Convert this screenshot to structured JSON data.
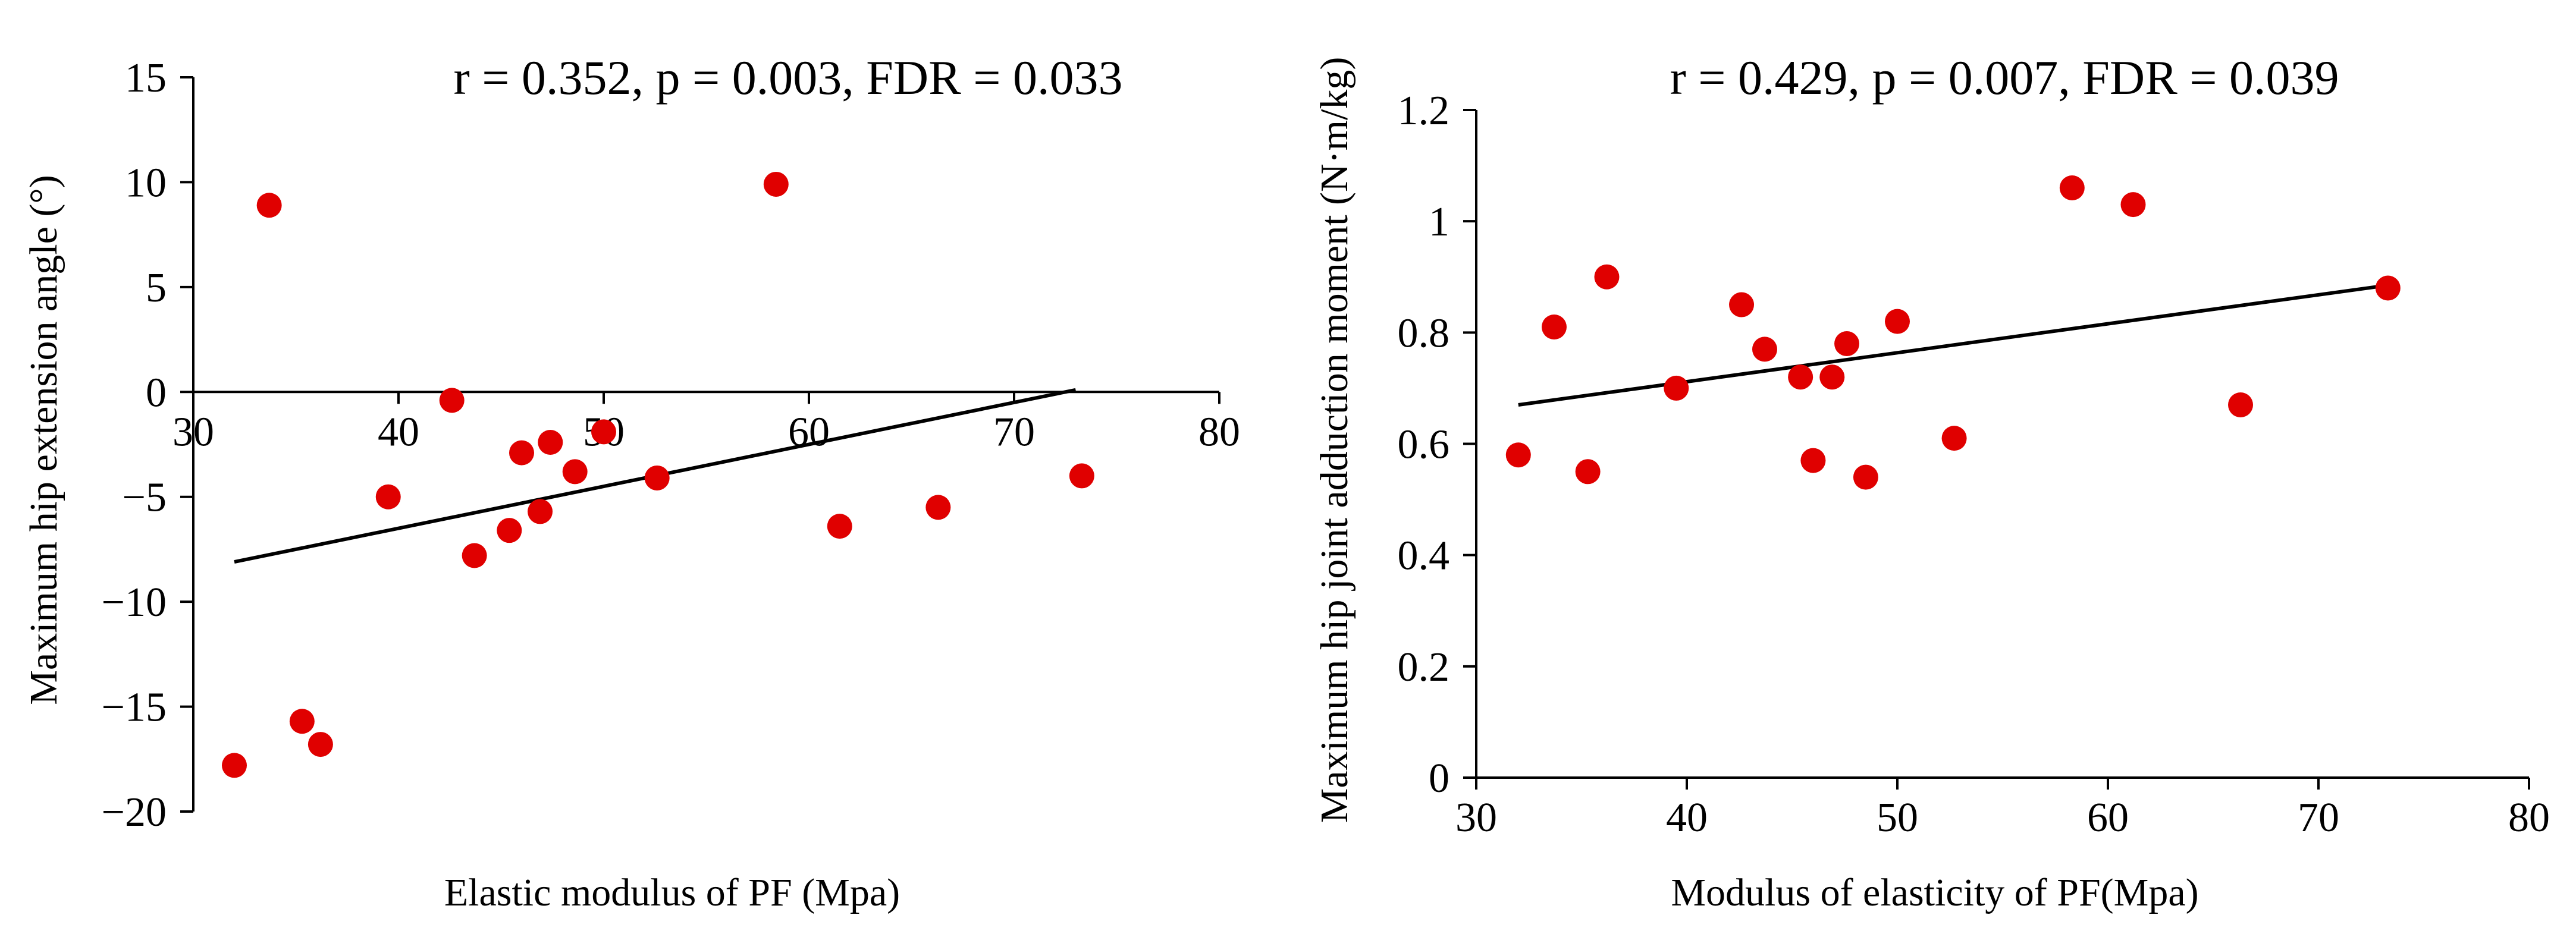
{
  "chart_data": [
    {
      "type": "scatter",
      "title": "r = 0.352, p = 0.003, FDR = 0.033",
      "xlabel": "Elastic modulus of PF (Mpa)",
      "ylabel": "Maximum hip extension angle (°)",
      "xlim": [
        30,
        80
      ],
      "ylim": [
        -20,
        15
      ],
      "xticks": [
        "30",
        "40",
        "50",
        "60",
        "70",
        "80"
      ],
      "yticks": [
        "15",
        "10",
        "5",
        "0",
        "−5",
        "−10",
        "−15",
        "−20"
      ],
      "colors": {
        "points": "#e00000",
        "trendline": "#000000"
      },
      "points": [
        {
          "x": 32.0,
          "y": -17.8
        },
        {
          "x": 33.7,
          "y": 8.9
        },
        {
          "x": 35.3,
          "y": -15.7
        },
        {
          "x": 36.2,
          "y": -16.8
        },
        {
          "x": 39.5,
          "y": -5.0
        },
        {
          "x": 42.6,
          "y": -0.4
        },
        {
          "x": 43.7,
          "y": -7.8
        },
        {
          "x": 45.4,
          "y": -6.6
        },
        {
          "x": 46.0,
          "y": -2.9
        },
        {
          "x": 46.9,
          "y": -5.7
        },
        {
          "x": 47.4,
          "y": -2.4
        },
        {
          "x": 48.6,
          "y": -3.8
        },
        {
          "x": 50.0,
          "y": -1.9
        },
        {
          "x": 52.6,
          "y": -4.1
        },
        {
          "x": 58.4,
          "y": 9.9
        },
        {
          "x": 61.5,
          "y": -6.4
        },
        {
          "x": 66.3,
          "y": -5.5
        },
        {
          "x": 73.3,
          "y": -4.0
        }
      ],
      "trendline": {
        "x": [
          32.0,
          73.0
        ],
        "y": [
          -8.1,
          0.1
        ]
      }
    },
    {
      "type": "scatter",
      "title": "r = 0.429, p = 0.007, FDR = 0.039",
      "xlabel": "Modulus of elasticity of PF(Mpa)",
      "ylabel": "Maximum hip joint adduction moment (N·m/kg)",
      "xlim": [
        30,
        80
      ],
      "ylim": [
        0,
        1.2
      ],
      "xticks": [
        "30",
        "40",
        "50",
        "60",
        "70",
        "80"
      ],
      "yticks": [
        "1.2",
        "1",
        "0.8",
        "0.6",
        "0.4",
        "0.2",
        "0"
      ],
      "colors": {
        "points": "#e00000",
        "trendline": "#000000"
      },
      "points": [
        {
          "x": 32.0,
          "y": 0.58
        },
        {
          "x": 33.7,
          "y": 0.81
        },
        {
          "x": 35.3,
          "y": 0.55
        },
        {
          "x": 36.2,
          "y": 0.9
        },
        {
          "x": 39.5,
          "y": 0.7
        },
        {
          "x": 42.6,
          "y": 0.85
        },
        {
          "x": 43.7,
          "y": 0.77
        },
        {
          "x": 45.4,
          "y": 0.72
        },
        {
          "x": 46.0,
          "y": 0.57
        },
        {
          "x": 46.9,
          "y": 0.72
        },
        {
          "x": 47.6,
          "y": 0.78
        },
        {
          "x": 48.5,
          "y": 0.54
        },
        {
          "x": 50.0,
          "y": 0.82
        },
        {
          "x": 52.7,
          "y": 0.61
        },
        {
          "x": 58.3,
          "y": 1.06
        },
        {
          "x": 61.2,
          "y": 1.03
        },
        {
          "x": 66.3,
          "y": 0.67
        },
        {
          "x": 73.3,
          "y": 0.88
        }
      ],
      "trendline": {
        "x": [
          32.0,
          73.3
        ],
        "y": [
          0.67,
          0.885
        ]
      }
    }
  ]
}
